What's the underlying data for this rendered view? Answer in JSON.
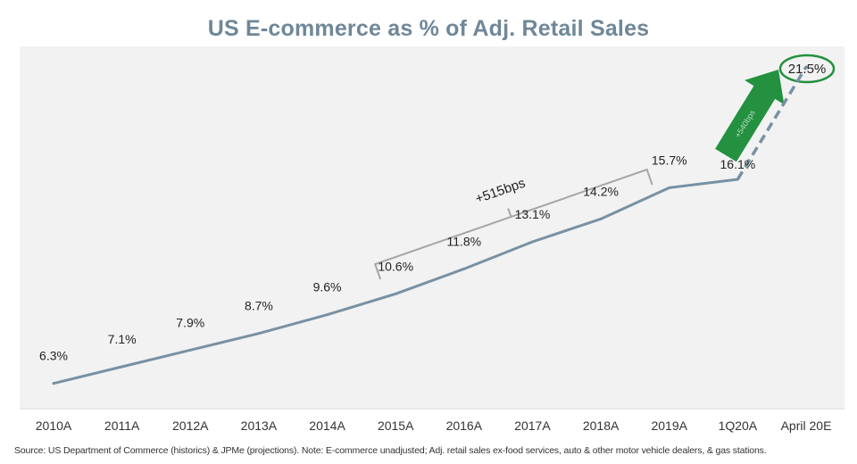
{
  "chart_data": {
    "type": "line",
    "title": "US E-commerce as % of Adj. Retail Sales",
    "categories": [
      "2010A",
      "2011A",
      "2012A",
      "2013A",
      "2014A",
      "2015A",
      "2016A",
      "2017A",
      "2018A",
      "2019A",
      "1Q20A",
      "April 20E"
    ],
    "series": [
      {
        "name": "E-commerce % of Adj. Retail Sales",
        "values": [
          6.3,
          7.1,
          7.9,
          8.7,
          9.6,
          10.6,
          11.8,
          13.1,
          14.2,
          15.7,
          16.1,
          21.5
        ],
        "labels": [
          "6.3%",
          "7.1%",
          "7.9%",
          "8.7%",
          "9.6%",
          "10.6%",
          "11.8%",
          "13.1%",
          "14.2%",
          "15.7%",
          "16.1%",
          "21.5%"
        ],
        "projected_from_index": 10
      }
    ],
    "ylim": [
      5,
      23
    ],
    "xlabel": "",
    "ylabel": "",
    "grid": false,
    "annotations": {
      "bracket": {
        "label": "+515bps",
        "from": "2015A",
        "to": "2019A"
      },
      "arrow": {
        "label": "+540bps",
        "from": "1Q20A",
        "to": "April 20E"
      }
    },
    "colors": {
      "line": "#7891a3",
      "title": "#6f8798",
      "bracket": "#a6a6a6",
      "arrow": "#23913f",
      "circle": "#23913f"
    }
  },
  "source": "Source: US Department of Commerce (historics) & JPMe (projections). Note: E-commerce unadjusted; Adj. retail sales ex-food services, auto & other motor vehicle dealers, & gas stations."
}
